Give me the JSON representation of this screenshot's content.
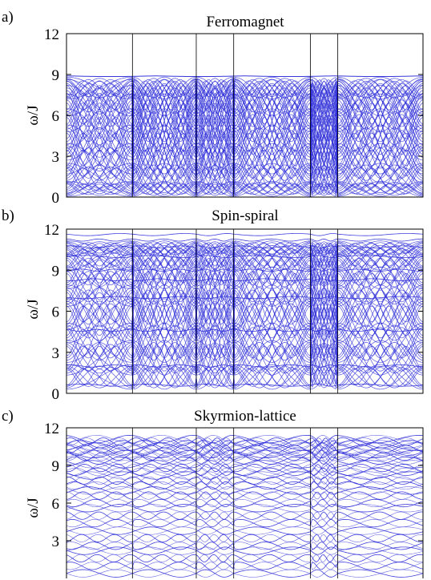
{
  "chart_data": [
    {
      "panel": "a)",
      "type": "line",
      "title": "Ferromagnet",
      "ylabel": "ω/J",
      "xlabel": "",
      "ylim": [
        0,
        12
      ],
      "yticks": [
        0,
        3,
        6,
        9,
        12
      ],
      "ytick_labels": [
        "0",
        "3",
        "6",
        "9",
        "12"
      ],
      "grid": "vertical lines at high-symmetry points",
      "x_divisions": [
        0,
        0.185,
        0.364,
        0.469,
        0.684,
        0.761,
        1.0
      ],
      "line_color": "#2b2bd8",
      "bands": {
        "description": "dense set of dispersive magnon bands between 0 and 8.9",
        "top_flat": 8.9,
        "branches": [
          {
            "center": 0.6,
            "amp": 0.6
          },
          {
            "center": 1.4,
            "amp": 1.2
          },
          {
            "center": 2.5,
            "amp": 1.6
          },
          {
            "center": 3.5,
            "amp": 2.0
          },
          {
            "center": 4.6,
            "amp": 2.1
          },
          {
            "center": 5.6,
            "amp": 2.2
          },
          {
            "center": 6.5,
            "amp": 1.9
          },
          {
            "center": 7.3,
            "amp": 1.5
          },
          {
            "center": 8.0,
            "amp": 0.9
          }
        ]
      }
    },
    {
      "panel": "b)",
      "type": "line",
      "title": "Spin-spiral",
      "ylabel": "ω/J",
      "xlabel": "",
      "ylim": [
        0,
        12
      ],
      "yticks": [
        0,
        3,
        6,
        9,
        12
      ],
      "ytick_labels": [
        "0",
        "3",
        "6",
        "9",
        "12"
      ],
      "grid": "vertical lines at high-symmetry points",
      "x_divisions": [
        0,
        0.185,
        0.364,
        0.469,
        0.684,
        0.761,
        1.0
      ],
      "line_color": "#2b2bd8",
      "bands": {
        "description": "magnon bands with flat levels near 0.6, 2.0, 4.6, 7.0 and up to 11.6",
        "flat_levels": [
          0.6,
          2.0,
          4.6,
          7.0,
          8.3,
          9.0,
          10.0,
          10.7,
          11.2,
          11.6
        ],
        "branches": [
          {
            "center": 1.2,
            "amp": 1.0
          },
          {
            "center": 2.6,
            "amp": 1.4
          },
          {
            "center": 3.7,
            "amp": 1.6
          },
          {
            "center": 5.3,
            "amp": 1.8
          },
          {
            "center": 6.3,
            "amp": 1.8
          },
          {
            "center": 7.8,
            "amp": 1.6
          },
          {
            "center": 8.9,
            "amp": 1.4
          },
          {
            "center": 9.9,
            "amp": 1.0
          },
          {
            "center": 10.6,
            "amp": 0.6
          }
        ]
      }
    },
    {
      "panel": "c)",
      "type": "line",
      "title": "Skyrmion-lattice",
      "ylabel": "ω/J",
      "xlabel": "",
      "ylim": [
        0,
        12
      ],
      "yticks": [
        3,
        6,
        9,
        12
      ],
      "ytick_labels": [
        "3",
        "6",
        "9",
        "12"
      ],
      "grid": "vertical lines at high-symmetry points",
      "x_divisions": [
        0,
        0.185,
        0.364,
        0.469,
        0.684,
        0.761,
        1.0
      ],
      "line_color": "#2b2bd8",
      "bands": {
        "description": "many nearly flat bands from about 0.3 to 11.1, denser toward the top",
        "flat_levels": [
          0.4,
          1.0,
          1.6,
          2.2,
          2.6,
          3.2,
          3.8,
          4.4,
          5.0,
          5.6,
          6.0,
          6.6,
          7.0,
          7.4,
          7.8,
          8.2,
          8.5,
          8.8,
          9.1,
          9.4,
          9.7,
          9.9,
          10.1,
          10.3,
          10.5,
          10.7,
          10.9,
          11.1
        ],
        "wiggle_amp": 0.3
      }
    }
  ]
}
